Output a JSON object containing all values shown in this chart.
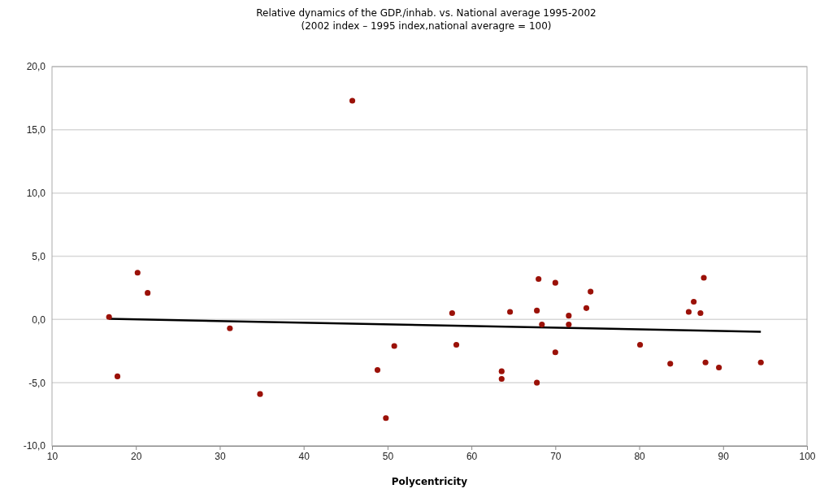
{
  "chart_data": {
    "type": "scatter",
    "title": "Relative dynamics of the GDP./inhab. vs. National average 1995-2002",
    "subtitle": "(2002 index – 1995 index,national averagre = 100)",
    "xlabel": "Polycentricity",
    "xlim": [
      10,
      100
    ],
    "xticks": [
      10,
      20,
      30,
      40,
      50,
      60,
      70,
      80,
      90,
      100
    ],
    "ylim": [
      -10,
      20
    ],
    "yticks": [
      {
        "value": -10,
        "label": "-10,0"
      },
      {
        "value": -5,
        "label": "-5,0"
      },
      {
        "value": 0,
        "label": "0,0"
      },
      {
        "value": 5,
        "label": "5,0"
      },
      {
        "value": 10,
        "label": "10,0"
      },
      {
        "value": 15,
        "label": "15,0"
      },
      {
        "value": 20,
        "label": "20,0"
      }
    ],
    "grid": "y",
    "marker": "circle",
    "series": [
      {
        "color": "#9b1108",
        "x": [
          16.8,
          17.8,
          20.2,
          21.4,
          31.2,
          34.8,
          45.8,
          48.8,
          50.8,
          49.8,
          57.7,
          58.2,
          63.6,
          63.6,
          64.6,
          67.8,
          68.0,
          67.8,
          68.4,
          70.0,
          70.0,
          71.6,
          71.6,
          73.7,
          74.2,
          80.1,
          83.7,
          85.9,
          86.5,
          87.3,
          87.7,
          87.9,
          89.5,
          94.5
        ],
        "values": [
          0.2,
          -4.5,
          3.7,
          2.1,
          -0.7,
          -5.9,
          17.3,
          -4.0,
          -2.1,
          -7.8,
          0.5,
          -2.0,
          -4.1,
          -4.7,
          0.6,
          0.7,
          3.2,
          -5.0,
          -0.4,
          2.9,
          -2.6,
          0.3,
          -0.4,
          0.9,
          2.2,
          -2.0,
          -3.5,
          0.6,
          1.4,
          0.5,
          3.3,
          -3.4,
          -3.8,
          -3.4
        ]
      },
      {
        "type": "line",
        "color": "#000000",
        "line_style": "solid",
        "marker": "none",
        "x": [
          16.8,
          94.5
        ],
        "values": [
          0.05,
          -0.97
        ]
      }
    ]
  }
}
